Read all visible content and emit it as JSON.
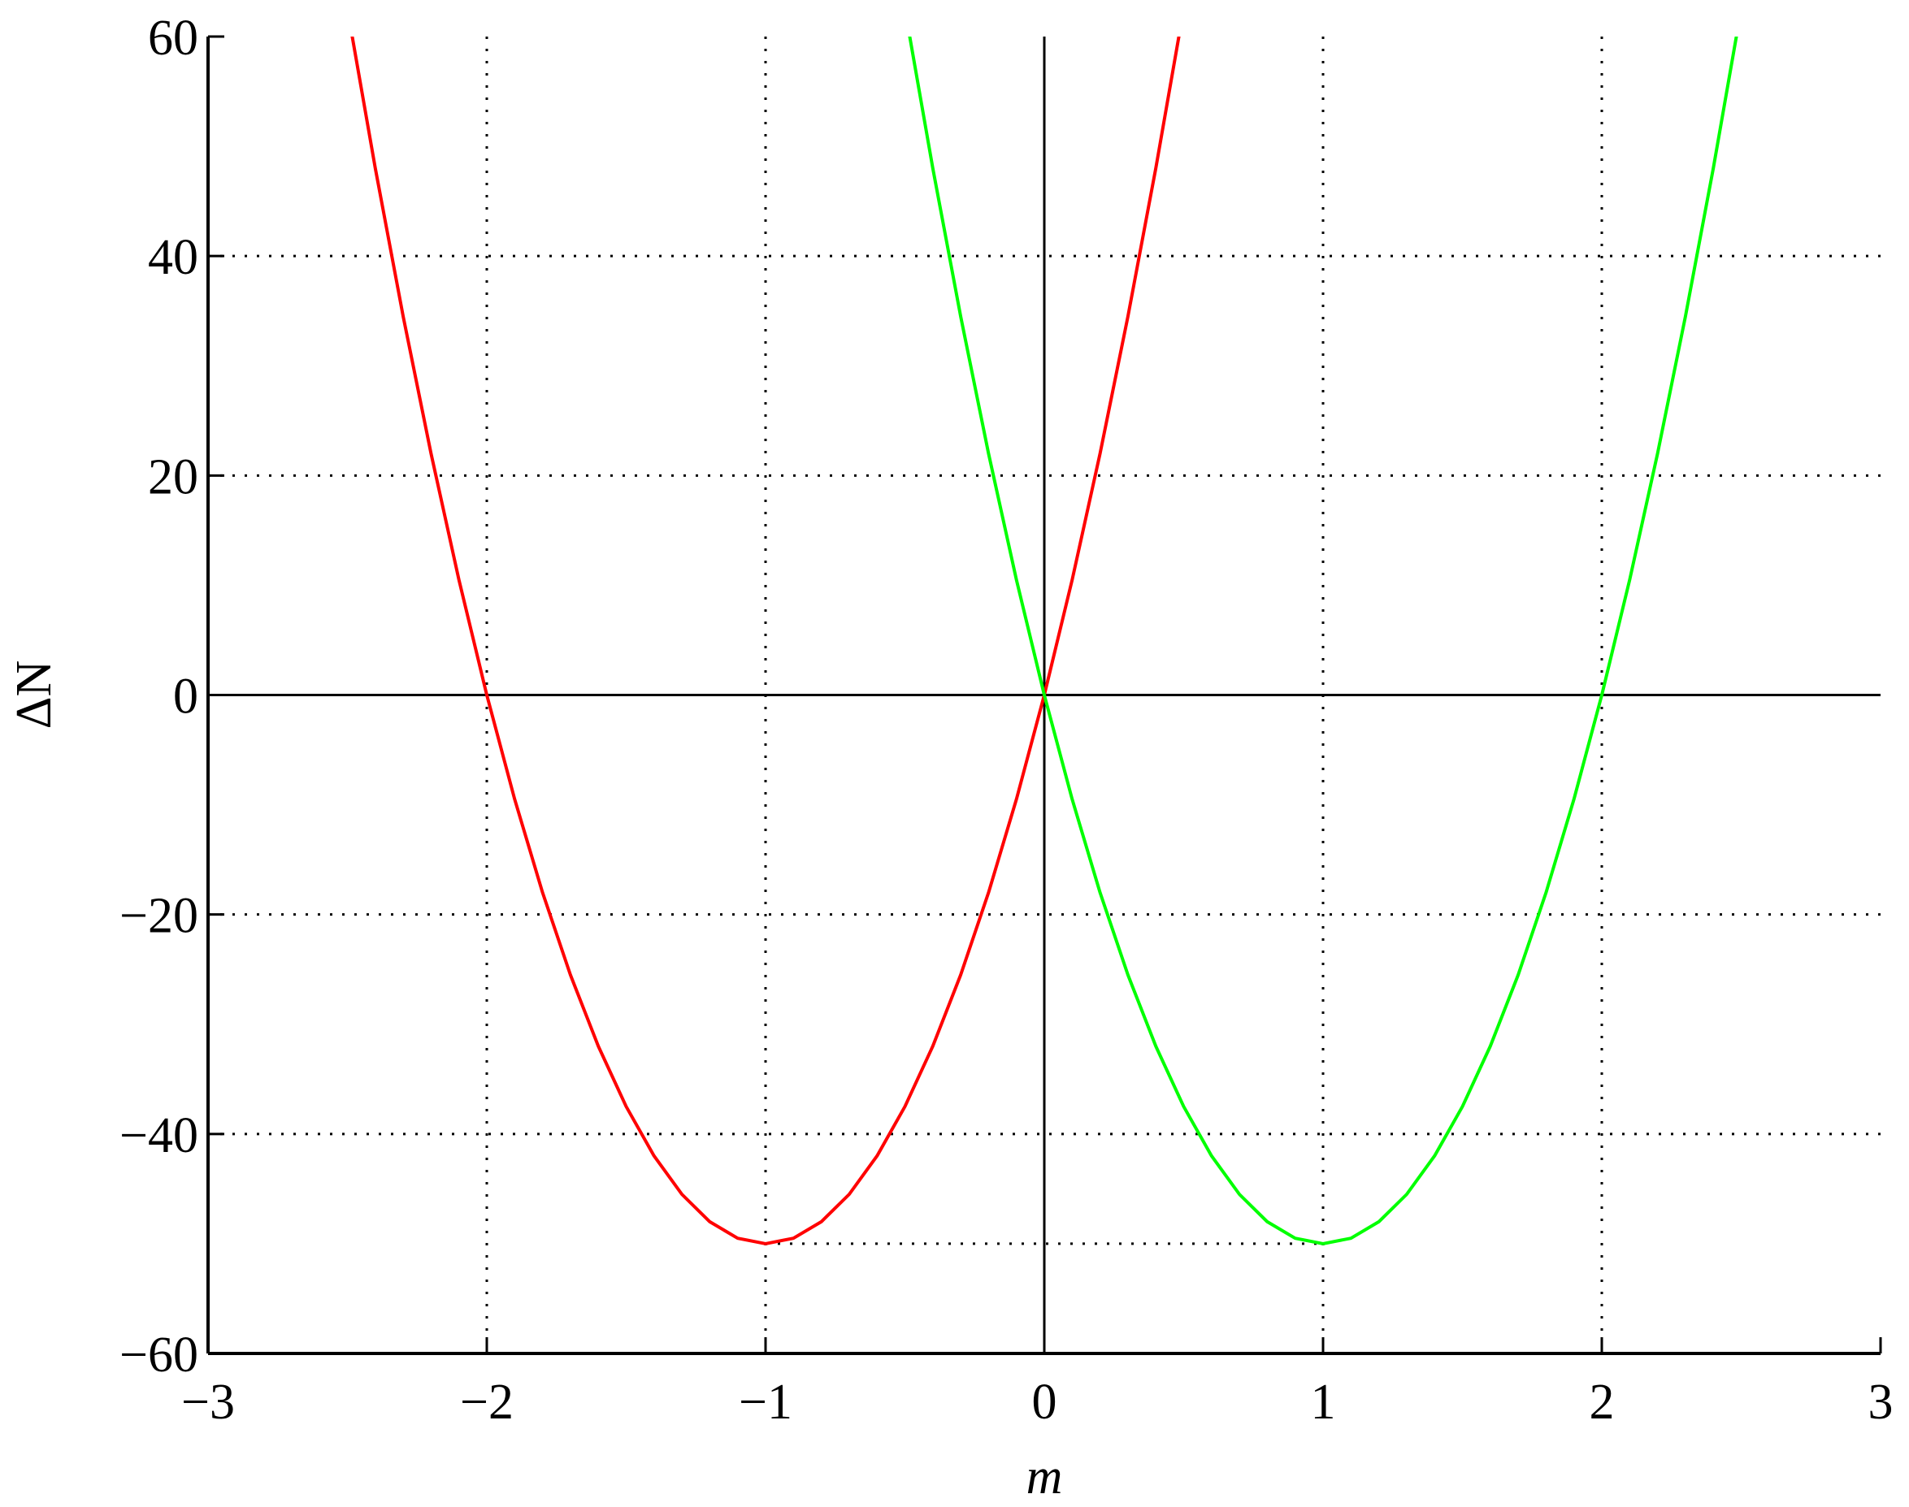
{
  "chart_data": {
    "type": "line",
    "title": "",
    "xlabel": "m",
    "ylabel": "ΔN",
    "xlim": [
      -3,
      3
    ],
    "ylim": [
      -60,
      60
    ],
    "xticks": [
      -3,
      -2,
      -1,
      0,
      1,
      2,
      3
    ],
    "yticks": [
      -60,
      -40,
      -20,
      0,
      20,
      40,
      60
    ],
    "xtick_labels": [
      "−3",
      "−2",
      "−1",
      "0",
      "1",
      "2",
      "3"
    ],
    "ytick_labels": [
      "−60",
      "−40",
      "−20",
      "0",
      "20",
      "40",
      "60"
    ],
    "grid": true,
    "grid_style": "dotted",
    "zero_lines": true,
    "reference_line": {
      "y": -50,
      "x_from": -1,
      "x_to": 1,
      "style": "dotted"
    },
    "series": [
      {
        "color": "#ff0000",
        "x": [
          -2.5,
          -2.4,
          -2.3,
          -2.2,
          -2.1,
          -2.0,
          -1.9,
          -1.8,
          -1.7,
          -1.6,
          -1.5,
          -1.4,
          -1.3,
          -1.2,
          -1.1,
          -1.0,
          -0.9,
          -0.8,
          -0.7,
          -0.6,
          -0.5,
          -0.4,
          -0.3,
          -0.2,
          -0.1,
          0.0,
          0.1,
          0.2,
          0.3,
          0.4,
          0.5
        ],
        "y": [
          62.5,
          48,
          34.5,
          22,
          10.5,
          0,
          -9.5,
          -18,
          -25.5,
          -32,
          -37.5,
          -42,
          -45.5,
          -48,
          -49.5,
          -50,
          -49.5,
          -48,
          -45.5,
          -42,
          -37.5,
          -32,
          -25.5,
          -18,
          -9.5,
          0,
          10.5,
          22,
          34.5,
          48,
          62.5
        ]
      },
      {
        "color": "#00ff00",
        "x": [
          -0.5,
          -0.4,
          -0.3,
          -0.2,
          -0.1,
          0.0,
          0.1,
          0.2,
          0.3,
          0.4,
          0.5,
          0.6,
          0.7,
          0.8,
          0.9,
          1.0,
          1.1,
          1.2,
          1.3,
          1.4,
          1.5,
          1.6,
          1.7,
          1.8,
          1.9,
          2.0,
          2.1,
          2.2,
          2.3,
          2.4,
          2.5
        ],
        "y": [
          62.5,
          48,
          34.5,
          22,
          10.5,
          0,
          -9.5,
          -18,
          -25.5,
          -32,
          -37.5,
          -42,
          -45.5,
          -48,
          -49.5,
          -50,
          -49.5,
          -48,
          -45.5,
          -42,
          -37.5,
          -32,
          -25.5,
          -18,
          -9.5,
          0,
          10.5,
          22,
          34.5,
          48,
          62.5
        ]
      }
    ]
  }
}
